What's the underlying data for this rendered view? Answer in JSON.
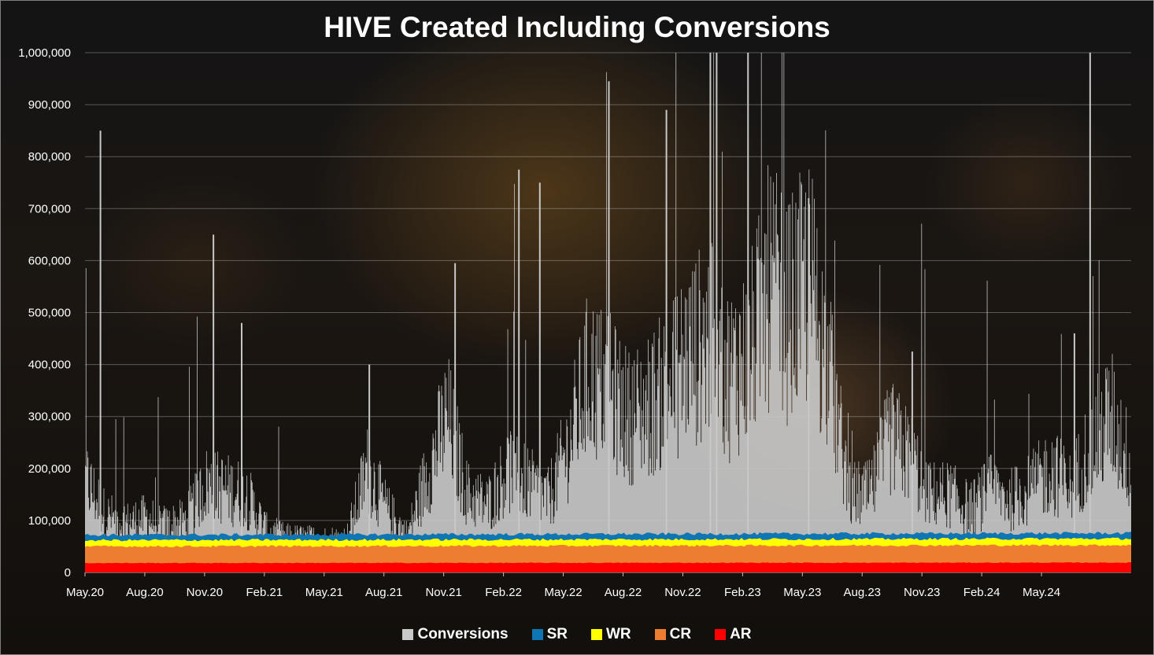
{
  "chart_data": {
    "type": "area",
    "title": "HIVE Created Including Conversions",
    "y_ticks": [
      "0",
      "100,000",
      "200,000",
      "300,000",
      "400,000",
      "500,000",
      "600,000",
      "700,000",
      "800,000",
      "900,000",
      "1,000,000"
    ],
    "x_ticks": [
      "May.20",
      "Aug.20",
      "Nov.20",
      "Feb.21",
      "May.21",
      "Aug.21",
      "Nov.21",
      "Feb.22",
      "May.22",
      "Aug.22",
      "Nov.22",
      "Feb.23",
      "May.23",
      "Aug.23",
      "Nov.23",
      "Feb.24",
      "May.24"
    ],
    "ylim": [
      0,
      1000000
    ],
    "x_range": [
      "May.20",
      "Sep.24"
    ],
    "grid": true,
    "legend_position": "bottom",
    "stacking": "stacked",
    "colors": {
      "Conversions": "#c8c8c8",
      "SR": "#0f76b3",
      "WR": "#ffff00",
      "CR": "#ed7d31",
      "AR": "#ff0000"
    },
    "series": [
      {
        "name": "Conversions",
        "note_values": "spiky daily conversions, approx stacked totals",
        "x": [
          "May.20",
          "Jun.20",
          "Jul.20",
          "Aug.20",
          "Sep.20",
          "Oct.20",
          "Nov.20",
          "Dec.20",
          "Jan.21",
          "Feb.21",
          "Mar.21",
          "Apr.21",
          "May.21",
          "Jun.21",
          "Jul.21",
          "Aug.21",
          "Sep.21",
          "Oct.21",
          "Nov.21",
          "Dec.21",
          "Jan.22",
          "Feb.22",
          "Mar.22",
          "Apr.22",
          "May.22",
          "Jun.22",
          "Jul.22",
          "Aug.22",
          "Sep.22",
          "Oct.22",
          "Nov.22",
          "Dec.22",
          "Jan.23",
          "Feb.23",
          "Mar.23",
          "Apr.23",
          "May.23",
          "Jun.23",
          "Jul.23",
          "Aug.23",
          "Sep.23",
          "Oct.23",
          "Nov.23",
          "Dec.23",
          "Jan.24",
          "Feb.24",
          "Mar.24",
          "Apr.24",
          "May.24",
          "Jun.24",
          "Jul.24",
          "Aug.24",
          "Sep.24"
        ],
        "values": [
          180000,
          110000,
          95000,
          105000,
          90000,
          100000,
          170000,
          160000,
          150000,
          80000,
          66000,
          64000,
          63000,
          64000,
          200000,
          120000,
          70000,
          190000,
          300000,
          150000,
          130000,
          200000,
          170000,
          140000,
          240000,
          380000,
          350000,
          300000,
          320000,
          360000,
          420000,
          450000,
          380000,
          420000,
          550000,
          500000,
          560000,
          380000,
          150000,
          150000,
          260000,
          220000,
          150000,
          150000,
          120000,
          160000,
          140000,
          160000,
          200000,
          160000,
          250000,
          300000,
          200000
        ],
        "peaks": [
          850000,
          650000,
          480000,
          400000,
          595000,
          775000,
          750000,
          810000,
          945000,
          890000,
          1000000,
          1000000,
          1000000,
          720000,
          425000,
          460000,
          1000000
        ]
      },
      {
        "name": "SR",
        "values_approx": 72000
      },
      {
        "name": "WR",
        "values_approx": 62000
      },
      {
        "name": "CR",
        "values_approx": 50000
      },
      {
        "name": "AR",
        "values_approx": 18000
      }
    ]
  },
  "legend": {
    "items": [
      {
        "label": "Conversions",
        "color": "#c8c8c8"
      },
      {
        "label": "SR",
        "color": "#0f76b3"
      },
      {
        "label": "WR",
        "color": "#ffff00"
      },
      {
        "label": "CR",
        "color": "#ed7d31"
      },
      {
        "label": "AR",
        "color": "#ff0000"
      }
    ]
  }
}
